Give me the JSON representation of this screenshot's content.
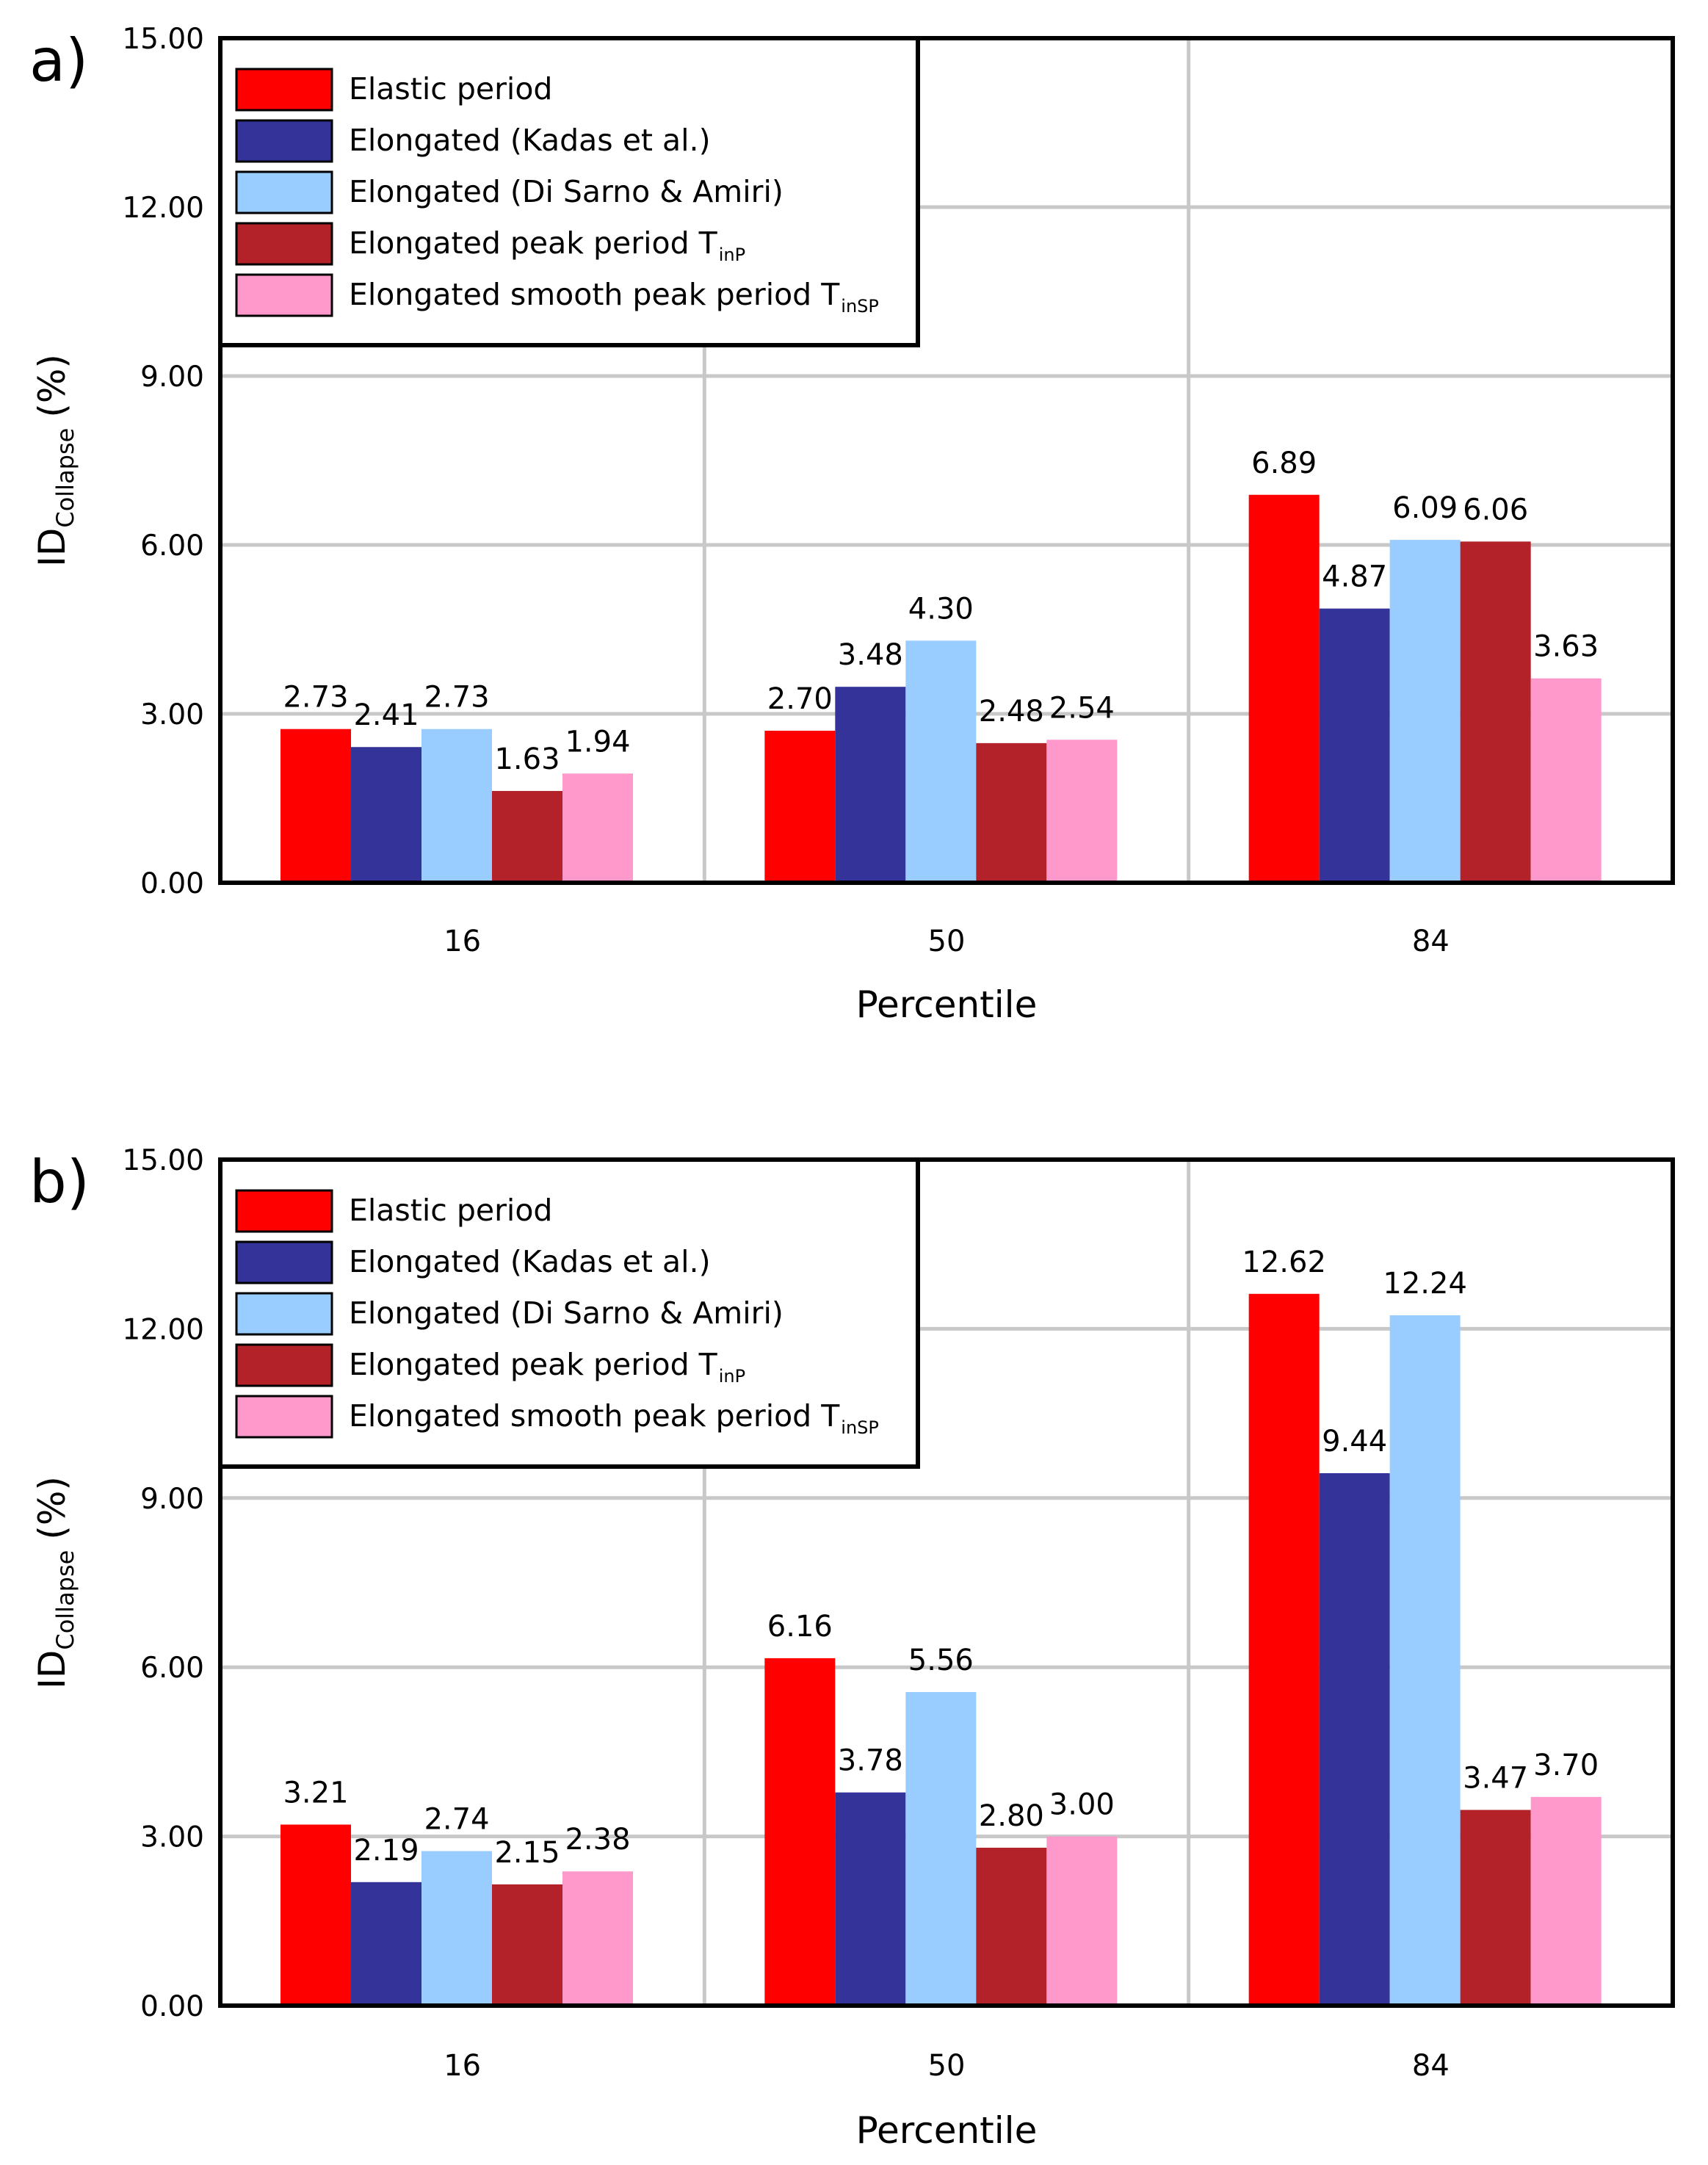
{
  "chart_data": [
    {
      "type": "bar",
      "panel_label": "a)",
      "categories": [
        "16",
        "50",
        "84"
      ],
      "xlabel": "Percentile",
      "ylabel_main": "ID",
      "ylabel_sub": "Collapse",
      "ylabel_unit": "(%)",
      "ylim": [
        0,
        15
      ],
      "yticks": [
        "0.00",
        "3.00",
        "6.00",
        "9.00",
        "12.00",
        "15.00"
      ],
      "grid": true,
      "legend_position": "top-left",
      "series": [
        {
          "name": "Elastic period",
          "subscript": "",
          "color": "#ff0000",
          "values": [
            2.73,
            2.7,
            6.89
          ],
          "labels": [
            "2.73",
            "2.70",
            "6.89"
          ]
        },
        {
          "name": "Elongated (Kadas et al.)",
          "subscript": "",
          "color": "#333399",
          "values": [
            2.41,
            3.48,
            4.87
          ],
          "labels": [
            "2.41",
            "3.48",
            "4.87"
          ]
        },
        {
          "name": "Elongated (Di Sarno & Amiri)",
          "subscript": "",
          "color": "#99ccff",
          "values": [
            2.73,
            4.3,
            6.09
          ],
          "labels": [
            "2.73",
            "4.30",
            "6.09"
          ]
        },
        {
          "name": "Elongated peak period T",
          "subscript": "inP",
          "color": "#b22228",
          "values": [
            1.63,
            2.48,
            6.06
          ],
          "labels": [
            "1.63",
            "2.48",
            "6.06"
          ]
        },
        {
          "name": "Elongated smooth peak period T",
          "subscript": "inSP",
          "color": "#ff99cc",
          "values": [
            1.94,
            2.54,
            3.63
          ],
          "labels": [
            "1.94",
            "2.54",
            "3.63"
          ]
        }
      ]
    },
    {
      "type": "bar",
      "panel_label": "b)",
      "categories": [
        "16",
        "50",
        "84"
      ],
      "xlabel": "Percentile",
      "ylabel_main": "ID",
      "ylabel_sub": "Collapse",
      "ylabel_unit": "(%)",
      "ylim": [
        0,
        15
      ],
      "yticks": [
        "0.00",
        "3.00",
        "6.00",
        "9.00",
        "12.00",
        "15.00"
      ],
      "grid": true,
      "legend_position": "top-left",
      "series": [
        {
          "name": "Elastic period",
          "subscript": "",
          "color": "#ff0000",
          "values": [
            3.21,
            6.16,
            12.62
          ],
          "labels": [
            "3.21",
            "6.16",
            "12.62"
          ]
        },
        {
          "name": "Elongated (Kadas et al.)",
          "subscript": "",
          "color": "#333399",
          "values": [
            2.19,
            3.78,
            9.44
          ],
          "labels": [
            "2.19",
            "3.78",
            "9.44"
          ]
        },
        {
          "name": "Elongated (Di Sarno & Amiri)",
          "subscript": "",
          "color": "#99ccff",
          "values": [
            2.74,
            5.56,
            12.24
          ],
          "labels": [
            "2.74",
            "5.56",
            "12.24"
          ]
        },
        {
          "name": "Elongated peak period T",
          "subscript": "inP",
          "color": "#b22228",
          "values": [
            2.15,
            2.8,
            3.47
          ],
          "labels": [
            "2.15",
            "2.80",
            "3.47"
          ]
        },
        {
          "name": "Elongated smooth peak period T",
          "subscript": "inSP",
          "color": "#ff99cc",
          "values": [
            2.38,
            3.0,
            3.7
          ],
          "labels": [
            "2.38",
            "3.00",
            "3.70"
          ]
        }
      ]
    }
  ]
}
